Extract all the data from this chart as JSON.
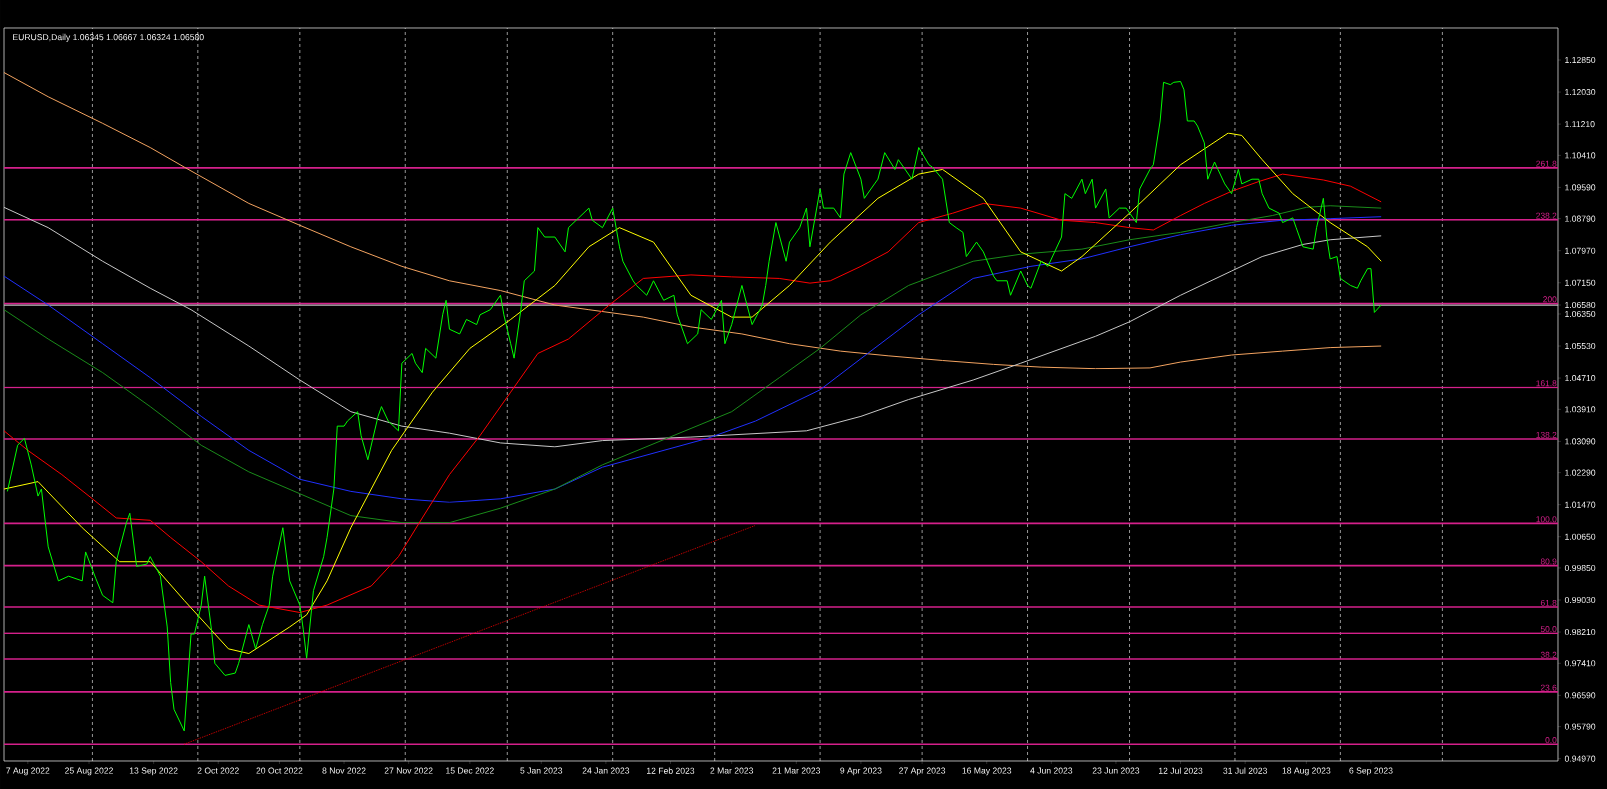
{
  "chart_data": {
    "type": "line",
    "title": "EURUSD,Daily 1.06345 1.06667 1.06324 1.06580",
    "xlim": [
      "2022-07-31",
      "2023-10-31"
    ],
    "ylim": [
      0.9491,
      1.1367
    ],
    "grid": "x",
    "marker": "none",
    "line_style": "solid",
    "xticks": [
      {
        "value": "2022-08-07",
        "label": "7 Aug 2022"
      },
      {
        "value": "2022-08-25",
        "label": "25 Aug 2022"
      },
      {
        "value": "2022-09-13",
        "label": "13 Sep 2022"
      },
      {
        "value": "2022-10-02",
        "label": "2 Oct 2022"
      },
      {
        "value": "2022-10-20",
        "label": "20 Oct 2022"
      },
      {
        "value": "2022-11-08",
        "label": "8 Nov 2022"
      },
      {
        "value": "2022-11-27",
        "label": "27 Nov 2022"
      },
      {
        "value": "2022-12-15",
        "label": "15 Dec 2022"
      },
      {
        "value": "2023-01-05",
        "label": "5 Jan 2023"
      },
      {
        "value": "2023-01-24",
        "label": "24 Jan 2023"
      },
      {
        "value": "2023-02-12",
        "label": "12 Feb 2023"
      },
      {
        "value": "2023-03-02",
        "label": "2 Mar 2023"
      },
      {
        "value": "2023-03-21",
        "label": "21 Mar 2023"
      },
      {
        "value": "2023-04-09",
        "label": "9 Apr 2023"
      },
      {
        "value": "2023-04-27",
        "label": "27 Apr 2023"
      },
      {
        "value": "2023-05-16",
        "label": "16 May 2023"
      },
      {
        "value": "2023-06-04",
        "label": "4 Jun 2023"
      },
      {
        "value": "2023-06-23",
        "label": "23 Jun 2023"
      },
      {
        "value": "2023-07-12",
        "label": "12 Jul 2023"
      },
      {
        "value": "2023-07-31",
        "label": "31 Jul 2023"
      },
      {
        "value": "2023-08-18",
        "label": "18 Aug 2023"
      },
      {
        "value": "2023-09-06",
        "label": "6 Sep 2023"
      },
      {
        "value": "2022-08-26",
        "label": null
      },
      {
        "value": "2022-09-26",
        "label": null
      },
      {
        "value": "2022-10-26",
        "label": null
      },
      {
        "value": "2022-11-26",
        "label": null
      },
      {
        "value": "2022-12-26",
        "label": null
      },
      {
        "value": "2023-01-26",
        "label": null
      },
      {
        "value": "2023-02-25",
        "label": null
      },
      {
        "value": "2023-03-28",
        "label": null
      },
      {
        "value": "2023-04-27",
        "label": null
      },
      {
        "value": "2023-05-28",
        "label": null
      },
      {
        "value": "2023-06-27",
        "label": null
      },
      {
        "value": "2023-07-28",
        "label": null
      },
      {
        "value": "2023-08-28",
        "label": null
      },
      {
        "value": "2023-09-27",
        "label": null
      }
    ],
    "yticks": [
      {
        "value": 0.9497,
        "label": "0.94970"
      },
      {
        "value": 0.9579,
        "label": "0.95790"
      },
      {
        "value": 0.9659,
        "label": "0.96590"
      },
      {
        "value": 0.9741,
        "label": "0.97410"
      },
      {
        "value": 0.9821,
        "label": "0.98210"
      },
      {
        "value": 0.9903,
        "label": "0.99030"
      },
      {
        "value": 0.9985,
        "label": "0.99850"
      },
      {
        "value": 1.0065,
        "label": "1.00650"
      },
      {
        "value": 1.0147,
        "label": "1.01470"
      },
      {
        "value": 1.0229,
        "label": "1.02290"
      },
      {
        "value": 1.0309,
        "label": "1.03090"
      },
      {
        "value": 1.0391,
        "label": "1.03910"
      },
      {
        "value": 1.0471,
        "label": "1.04710"
      },
      {
        "value": 1.0553,
        "label": "1.05530"
      },
      {
        "value": 1.0635,
        "label": "1.06350"
      },
      {
        "value": 1.0658,
        "label": "1.06580"
      },
      {
        "value": 1.0715,
        "label": "1.07150"
      },
      {
        "value": 1.0797,
        "label": "1.07970"
      },
      {
        "value": 1.0879,
        "label": "1.08790"
      },
      {
        "value": 1.0959,
        "label": "1.09590"
      },
      {
        "value": 1.1041,
        "label": "1.10410"
      },
      {
        "value": 1.1121,
        "label": "1.11210"
      },
      {
        "value": 1.1203,
        "label": "1.12030"
      },
      {
        "value": 1.1285,
        "label": "1.12850"
      }
    ],
    "ref_lines": [
      {
        "axis": "y",
        "value": 1.0658,
        "color": "#c0c0c0"
      },
      {
        "axis": "y",
        "value": 0.9534,
        "color": "#d5208b"
      },
      {
        "axis": "y",
        "value": 0.9668,
        "color": "#d5208b"
      },
      {
        "axis": "y",
        "value": 0.9752,
        "color": "#d5208b"
      },
      {
        "axis": "y",
        "value": 0.9818,
        "color": "#d5208b"
      },
      {
        "axis": "y",
        "value": 0.9885,
        "color": "#d5208b"
      },
      {
        "axis": "y",
        "value": 0.9991,
        "color": "#d5208b"
      },
      {
        "axis": "y",
        "value": 1.0099,
        "color": "#d5208b"
      },
      {
        "axis": "y",
        "value": 1.0315,
        "color": "#d5208b"
      },
      {
        "axis": "y",
        "value": 1.0447,
        "color": "#d5208b"
      },
      {
        "axis": "y",
        "value": 1.0662,
        "color": "#d5208b"
      },
      {
        "axis": "y",
        "value": 1.0876,
        "color": "#d5208b"
      },
      {
        "axis": "y",
        "value": 1.1009,
        "color": "#d5208b"
      }
    ],
    "annotations": [
      {
        "text": "0.0",
        "x": "2023-10-31",
        "y": 0.9534
      },
      {
        "text": "23.6",
        "x": "2023-10-31",
        "y": 0.9668
      },
      {
        "text": "38.2",
        "x": "2023-10-31",
        "y": 0.9752
      },
      {
        "text": "50.0",
        "x": "2023-10-31",
        "y": 0.9818
      },
      {
        "text": "61.8",
        "x": "2023-10-31",
        "y": 0.9885
      },
      {
        "text": "80.9",
        "x": "2023-10-31",
        "y": 0.9991
      },
      {
        "text": "100.0",
        "x": "2023-10-31",
        "y": 1.0099
      },
      {
        "text": "138.2",
        "x": "2023-10-31",
        "y": 1.0315
      },
      {
        "text": "161.8",
        "x": "2023-10-31",
        "y": 1.0447
      },
      {
        "text": "200",
        "x": "2023-10-31",
        "y": 1.0662
      },
      {
        "text": "238.2",
        "x": "2023-10-31",
        "y": 1.0876
      },
      {
        "text": "261.8",
        "x": "2023-10-31",
        "y": 1.1009
      }
    ],
    "series": [
      {
        "color": "#f4a460",
        "x": [
          "2022-07-31",
          "2022-08-13",
          "2022-08-29",
          "2022-09-12",
          "2022-09-22",
          "2022-10-11",
          "2022-10-26",
          "2022-11-10",
          "2022-11-25",
          "2022-12-09",
          "2022-12-24",
          "2023-01-09",
          "2023-01-19",
          "2023-02-04",
          "2023-02-18",
          "2023-03-05",
          "2023-03-19",
          "2023-04-03",
          "2023-04-17",
          "2023-05-03",
          "2023-05-18",
          "2023-06-01",
          "2023-06-17",
          "2023-07-03",
          "2023-07-12",
          "2023-07-27",
          "2023-08-11",
          "2023-08-25",
          "2023-09-09"
        ],
        "values": [
          1.1253,
          1.1191,
          1.1123,
          1.1061,
          1.1011,
          1.0918,
          1.0862,
          1.0807,
          1.0757,
          1.072,
          1.0695,
          1.0658,
          1.0646,
          1.0627,
          1.0602,
          1.0584,
          1.0559,
          1.054,
          1.0528,
          1.0516,
          1.0506,
          1.0499,
          1.0495,
          1.0497,
          1.0512,
          1.053,
          1.054,
          1.0549,
          1.0553
        ]
      },
      {
        "color": "#c8c8c8",
        "x": [
          "2022-07-31",
          "2022-08-13",
          "2022-08-29",
          "2022-09-12",
          "2022-09-24",
          "2022-10-11",
          "2022-10-26",
          "2022-11-10",
          "2022-11-25",
          "2022-12-09",
          "2022-12-24",
          "2023-01-09",
          "2023-01-23",
          "2023-02-18",
          "2023-03-24",
          "2023-04-09",
          "2023-04-23",
          "2023-05-12",
          "2023-05-26",
          "2023-06-17",
          "2023-06-27",
          "2023-07-12",
          "2023-07-27",
          "2023-08-05",
          "2023-08-17",
          "2023-08-25",
          "2023-09-09"
        ],
        "values": [
          1.0908,
          1.0856,
          1.077,
          1.0701,
          1.0646,
          1.0553,
          1.0466,
          1.0385,
          1.0348,
          1.033,
          1.0305,
          1.0295,
          1.0311,
          1.032,
          1.0336,
          1.0373,
          1.0416,
          1.0466,
          1.0509,
          1.0578,
          1.0615,
          1.0683,
          1.0745,
          1.0782,
          1.0813,
          1.0825,
          1.0835
        ]
      },
      {
        "color": "#2030ff",
        "x": [
          "2022-07-31",
          "2022-08-13",
          "2022-08-29",
          "2022-09-12",
          "2022-09-27",
          "2022-10-11",
          "2022-10-26",
          "2022-11-10",
          "2022-11-25",
          "2022-12-09",
          "2022-12-24",
          "2023-01-09",
          "2023-01-23",
          "2023-02-23",
          "2023-03-09",
          "2023-03-28",
          "2023-04-11",
          "2023-04-26",
          "2023-05-12",
          "2023-05-29",
          "2023-06-13",
          "2023-06-27",
          "2023-07-12",
          "2023-07-27",
          "2023-08-11",
          "2023-08-25",
          "2023-09-09"
        ],
        "values": [
          1.0732,
          1.0658,
          1.0559,
          1.0472,
          1.0373,
          1.0286,
          1.0212,
          1.0181,
          1.0162,
          1.0153,
          1.0162,
          1.0187,
          1.0243,
          1.0317,
          1.0361,
          1.0441,
          1.0534,
          1.0633,
          1.0726,
          1.0757,
          1.0776,
          1.0807,
          1.0838,
          1.0862,
          1.0875,
          1.0879,
          1.0884
        ]
      },
      {
        "color": "#1a8c1a",
        "x": [
          "2022-07-31",
          "2022-08-13",
          "2022-08-29",
          "2022-09-12",
          "2022-09-27",
          "2022-10-11",
          "2022-10-26",
          "2022-11-10",
          "2022-11-25",
          "2022-12-09",
          "2022-12-24",
          "2023-01-09",
          "2023-01-23",
          "2023-02-11",
          "2023-03-02",
          "2023-03-16",
          "2023-03-28",
          "2023-04-09",
          "2023-04-23",
          "2023-05-12",
          "2023-05-26",
          "2023-06-13",
          "2023-06-27",
          "2023-07-12",
          "2023-07-27",
          "2023-08-08",
          "2023-08-18",
          "2023-08-25",
          "2023-09-09"
        ],
        "values": [
          1.0646,
          1.0571,
          1.0485,
          1.0398,
          1.0299,
          1.0231,
          1.0175,
          1.0119,
          1.0101,
          1.0101,
          1.0138,
          1.0187,
          1.0249,
          1.0317,
          1.0385,
          1.0472,
          1.0547,
          1.0633,
          1.0708,
          1.077,
          1.0788,
          1.0801,
          1.0825,
          1.0844,
          1.0869,
          1.0887,
          1.0908,
          1.0912,
          1.0906
        ]
      },
      {
        "color": "#ff0000",
        "x": [
          "2022-07-31",
          "2022-08-07",
          "2022-08-17",
          "2022-08-26",
          "2022-09-02",
          "2022-09-12",
          "2022-09-18",
          "2022-09-27",
          "2022-10-05",
          "2022-10-14",
          "2022-10-26",
          "2022-11-03",
          "2022-11-16",
          "2022-11-24",
          "2022-12-01",
          "2022-12-09",
          "2022-12-18",
          "2022-12-27",
          "2023-01-04",
          "2023-01-13",
          "2023-01-25",
          "2023-02-04",
          "2023-02-18",
          "2023-03-02",
          "2023-03-16",
          "2023-03-25",
          "2023-03-31",
          "2023-04-09",
          "2023-04-17",
          "2023-04-26",
          "2023-05-06",
          "2023-05-15",
          "2023-05-26",
          "2023-06-07",
          "2023-06-17",
          "2023-06-27",
          "2023-07-04",
          "2023-07-12",
          "2023-07-19",
          "2023-07-27",
          "2023-08-04",
          "2023-08-11",
          "2023-08-23",
          "2023-08-31",
          "2023-09-09"
        ],
        "values": [
          1.0336,
          1.0286,
          1.0224,
          1.0162,
          1.0113,
          1.0107,
          1.0063,
          1.0001,
          0.9939,
          0.989,
          0.9871,
          0.989,
          0.9939,
          1.0014,
          1.0113,
          1.0224,
          1.0324,
          1.0435,
          1.0534,
          1.0571,
          1.0658,
          1.0726,
          1.0735,
          1.073,
          1.0726,
          1.0714,
          1.072,
          1.0757,
          1.0794,
          1.0869,
          1.0893,
          1.0918,
          1.0906,
          1.0875,
          1.0869,
          1.0856,
          1.085,
          1.0887,
          1.0918,
          1.0949,
          1.0974,
          1.0993,
          1.0978,
          1.0962,
          1.0922
        ]
      },
      {
        "color": "#ffff00",
        "x": [
          "2022-07-31",
          "2022-08-10",
          "2022-08-23",
          "2022-09-03",
          "2022-09-12",
          "2022-09-22",
          "2022-10-05",
          "2022-10-11",
          "2022-10-23",
          "2022-10-28",
          "2022-11-03",
          "2022-11-10",
          "2022-11-16",
          "2022-11-22",
          "2022-11-28",
          "2022-12-04",
          "2022-12-15",
          "2022-12-27",
          "2023-01-09",
          "2023-01-19",
          "2023-01-28",
          "2023-02-07",
          "2023-02-18",
          "2023-03-02",
          "2023-03-08",
          "2023-03-19",
          "2023-03-31",
          "2023-04-14",
          "2023-04-26",
          "2023-05-03",
          "2023-05-15",
          "2023-05-26",
          "2023-06-07",
          "2023-06-13",
          "2023-06-27",
          "2023-07-12",
          "2023-07-26",
          "2023-07-30",
          "2023-08-05",
          "2023-08-14",
          "2023-08-25",
          "2023-09-05",
          "2023-09-09"
        ],
        "values": [
          1.0187,
          1.0206,
          1.0088,
          1.0001,
          1.0001,
          0.9902,
          0.9778,
          0.9766,
          0.9834,
          0.9865,
          0.9952,
          1.0088,
          1.0187,
          1.0286,
          1.0361,
          1.0435,
          1.0547,
          1.0621,
          1.0708,
          1.0807,
          1.0856,
          1.0819,
          1.0683,
          1.0627,
          1.0627,
          1.0708,
          1.0819,
          1.0931,
          1.0993,
          1.1005,
          1.0931,
          1.0794,
          1.0745,
          1.0782,
          1.0893,
          1.1017,
          1.1098,
          1.1092,
          1.103,
          1.0943,
          1.0869,
          1.0807,
          1.077
        ]
      },
      {
        "color": "#00ff00",
        "x": [
          "2022-08-01",
          "2022-08-04",
          "2022-08-06",
          "2022-08-08",
          "2022-08-10",
          "2022-08-11",
          "2022-08-13",
          "2022-08-16",
          "2022-08-19",
          "2022-08-23",
          "2022-08-24",
          "2022-08-27",
          "2022-08-29",
          "2022-09-01",
          "2022-09-02",
          "2022-09-05",
          "2022-09-06",
          "2022-09-08",
          "2022-09-11",
          "2022-09-12",
          "2022-09-15",
          "2022-09-17",
          "2022-09-18",
          "2022-09-19",
          "2022-09-22",
          "2022-09-24",
          "2022-09-25",
          "2022-09-27",
          "2022-09-28",
          "2022-09-30",
          "2022-10-01",
          "2022-10-04",
          "2022-10-07",
          "2022-10-08",
          "2022-10-11",
          "2022-10-13",
          "2022-10-15",
          "2022-10-17",
          "2022-10-18",
          "2022-10-21",
          "2022-10-23",
          "2022-10-26",
          "2022-10-27",
          "2022-10-28",
          "2022-10-30",
          "2022-11-02",
          "2022-11-03",
          "2022-11-05",
          "2022-11-06",
          "2022-11-08",
          "2022-11-09",
          "2022-11-12",
          "2022-11-13",
          "2022-11-15",
          "2022-11-18",
          "2022-11-19",
          "2022-11-21",
          "2022-11-24",
          "2022-11-25",
          "2022-11-28",
          "2022-11-29",
          "2022-12-01",
          "2022-12-02",
          "2022-12-05",
          "2022-12-07",
          "2022-12-08",
          "2022-12-09",
          "2022-12-12",
          "2022-12-14",
          "2022-12-17",
          "2022-12-18",
          "2022-12-21",
          "2022-12-24",
          "2022-12-25",
          "2022-12-27",
          "2022-12-28",
          "2022-12-30",
          "2022-12-31",
          "2023-01-03",
          "2023-01-04",
          "2023-01-06",
          "2023-01-09",
          "2023-01-12",
          "2023-01-13",
          "2023-01-16",
          "2023-01-19",
          "2023-01-20",
          "2023-01-23",
          "2023-01-26",
          "2023-01-28",
          "2023-01-29",
          "2023-02-01",
          "2023-02-02",
          "2023-02-05",
          "2023-02-07",
          "2023-02-10",
          "2023-02-13",
          "2023-02-14",
          "2023-02-17",
          "2023-02-20",
          "2023-02-21",
          "2023-02-24",
          "2023-02-27",
          "2023-02-28",
          "2023-03-02",
          "2023-03-05",
          "2023-03-08",
          "2023-03-11",
          "2023-03-12",
          "2023-03-13",
          "2023-03-15",
          "2023-03-18",
          "2023-03-19",
          "2023-03-22",
          "2023-03-24",
          "2023-03-25",
          "2023-03-28",
          "2023-03-29",
          "2023-04-01",
          "2023-04-03",
          "2023-04-04",
          "2023-04-06",
          "2023-04-09",
          "2023-04-10",
          "2023-04-13",
          "2023-04-14",
          "2023-04-16",
          "2023-04-19",
          "2023-04-20",
          "2023-04-24",
          "2023-04-26",
          "2023-04-29",
          "2023-04-30",
          "2023-05-03",
          "2023-05-05",
          "2023-05-07",
          "2023-05-09",
          "2023-05-10",
          "2023-05-13",
          "2023-05-15",
          "2023-05-18",
          "2023-05-19",
          "2023-05-22",
          "2023-05-23",
          "2023-05-26",
          "2023-05-28",
          "2023-05-29",
          "2023-06-01",
          "2023-06-03",
          "2023-06-07",
          "2023-06-08",
          "2023-06-10",
          "2023-06-13",
          "2023-06-14",
          "2023-06-16",
          "2023-06-17",
          "2023-06-20",
          "2023-06-21",
          "2023-06-24",
          "2023-06-26",
          "2023-06-29",
          "2023-06-30",
          "2023-07-03",
          "2023-07-04",
          "2023-07-06",
          "2023-07-07",
          "2023-07-09",
          "2023-07-10",
          "2023-07-12",
          "2023-07-13",
          "2023-07-14",
          "2023-07-16",
          "2023-07-17",
          "2023-07-19",
          "2023-07-20",
          "2023-07-22",
          "2023-07-23",
          "2023-07-25",
          "2023-07-27",
          "2023-07-29",
          "2023-07-30",
          "2023-08-02",
          "2023-08-04",
          "2023-08-05",
          "2023-08-07",
          "2023-08-10",
          "2023-08-11",
          "2023-08-14",
          "2023-08-15",
          "2023-08-17",
          "2023-08-20",
          "2023-08-21",
          "2023-08-23",
          "2023-08-24",
          "2023-08-25",
          "2023-08-27",
          "2023-08-28",
          "2023-08-31",
          "2023-09-02",
          "2023-09-03",
          "2023-09-05",
          "2023-09-06",
          "2023-09-07",
          "2023-09-09"
        ],
        "values": [
          1.0181,
          1.0299,
          1.0317,
          1.0249,
          1.0169,
          1.0187,
          1.0039,
          0.9952,
          0.9964,
          0.9952,
          1.0026,
          0.9958,
          0.9915,
          0.9896,
          1.0001,
          1.0101,
          1.0125,
          0.9989,
          0.9995,
          1.0014,
          0.9964,
          0.9834,
          0.9692,
          0.9623,
          0.9568,
          0.9816,
          0.9816,
          0.989,
          0.9964,
          0.9828,
          0.9741,
          0.971,
          0.9716,
          0.9741,
          0.984,
          0.9778,
          0.984,
          0.989,
          0.9964,
          1.0088,
          0.9952,
          0.989,
          0.9828,
          0.9754,
          0.9927,
          1.0014,
          1.0063,
          1.0187,
          1.0348,
          1.0348,
          1.0361,
          1.0385,
          1.0324,
          1.0262,
          1.0373,
          1.0398,
          1.0361,
          1.0336,
          1.0509,
          1.0534,
          1.0509,
          1.0485,
          1.0547,
          1.0522,
          1.0633,
          1.067,
          1.0596,
          1.0584,
          1.0621,
          1.0608,
          1.0633,
          1.0646,
          1.0683,
          1.0633,
          1.0559,
          1.0522,
          1.0646,
          1.072,
          1.0745,
          1.0856,
          1.0832,
          1.0832,
          1.0794,
          1.0856,
          1.0881,
          1.0906,
          1.0875,
          1.0856,
          1.0906,
          1.0807,
          1.077,
          1.072,
          1.0708,
          1.0683,
          1.072,
          1.067,
          1.0683,
          1.0633,
          1.0559,
          1.0584,
          1.0646,
          1.0621,
          1.067,
          1.0559,
          1.0608,
          1.0708,
          1.0608,
          1.0658,
          1.0708,
          1.077,
          1.0869,
          1.077,
          1.0819,
          1.0856,
          1.0906,
          1.0807,
          1.0955,
          1.0906,
          1.0906,
          1.0881,
          1.0993,
          1.1048,
          1.098,
          1.0931,
          1.0968,
          1.098,
          1.1048,
          1.1005,
          1.103,
          1.098,
          1.1061,
          1.1017,
          1.1011,
          1.098,
          1.0869,
          1.0856,
          1.0844,
          1.0782,
          1.0819,
          1.0794,
          1.0732,
          1.072,
          1.072,
          1.0683,
          1.0745,
          1.0708,
          1.0701,
          1.077,
          1.0757,
          1.0832,
          1.0943,
          1.0931,
          1.098,
          1.0943,
          1.098,
          1.0906,
          1.0955,
          1.0881,
          1.0906,
          1.0906,
          1.0869,
          1.0955,
          1.1005,
          1.1017,
          1.1129,
          1.1228,
          1.1222,
          1.1228,
          1.123,
          1.1209,
          1.1129,
          1.1129,
          1.1116,
          1.1073,
          1.098,
          1.1024,
          1.1005,
          1.0968,
          1.0943,
          1.1005,
          1.0968,
          1.098,
          1.098,
          1.0943,
          1.0906,
          1.0893,
          1.0869,
          1.0881,
          1.0856,
          1.0807,
          1.0801,
          1.0856,
          1.0931,
          1.0832,
          1.0776,
          1.0782,
          1.0726,
          1.0708,
          1.0701,
          1.072,
          1.0751,
          1.0751,
          1.0639,
          1.0658
        ]
      },
      {
        "color": "#ff0000",
        "line_style": "dotted",
        "x": [
          "2022-09-22",
          "2023-03-09"
        ],
        "values": [
          0.9534,
          1.0094
        ]
      }
    ]
  }
}
